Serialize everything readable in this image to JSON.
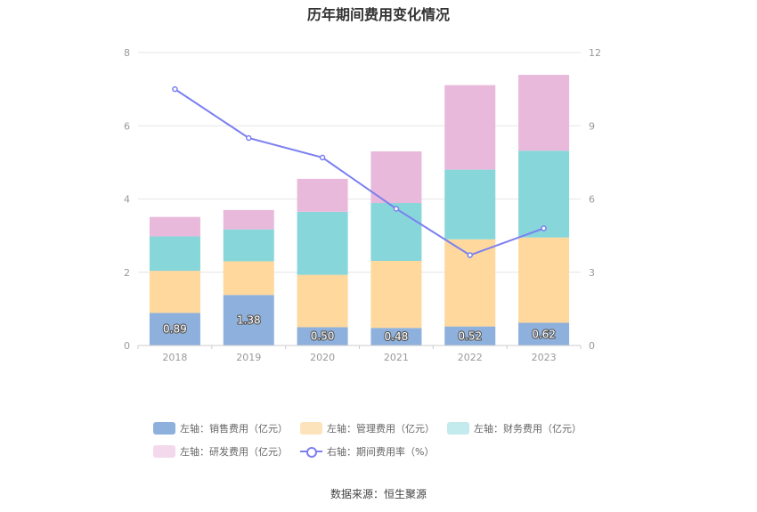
{
  "title": "历年期间费用变化情况",
  "source": "数据来源：恒生聚源",
  "chart_data": {
    "type": "bar",
    "stacked": true,
    "categories": [
      "2018",
      "2019",
      "2020",
      "2021",
      "2022",
      "2023"
    ],
    "left_axis": {
      "ylim": [
        0,
        8
      ],
      "ticks": [
        0,
        2,
        4,
        6,
        8
      ]
    },
    "right_axis": {
      "ylim": [
        0,
        12
      ],
      "ticks": [
        0,
        3,
        6,
        9,
        12
      ]
    },
    "series": [
      {
        "name": "左轴：销售费用（亿元）",
        "axis": "left",
        "color": "#8eb0dd",
        "values": [
          0.89,
          1.38,
          0.5,
          0.48,
          0.52,
          0.62
        ],
        "labels": [
          "0.89",
          "1.38",
          "0.50",
          "0.48",
          "0.52",
          "0.62"
        ]
      },
      {
        "name": "左轴：管理费用（亿元）",
        "axis": "left",
        "color": "#fed89c",
        "values": [
          1.15,
          0.92,
          1.43,
          1.83,
          2.38,
          2.33
        ]
      },
      {
        "name": "左轴：财务费用（亿元）",
        "axis": "left",
        "color": "#86d6da",
        "values": [
          0.94,
          0.87,
          1.72,
          1.58,
          1.9,
          2.37
        ]
      },
      {
        "name": "左轴：研发费用（亿元）",
        "axis": "left",
        "color": "#e8b9da",
        "values": [
          0.53,
          0.53,
          0.9,
          1.41,
          2.31,
          2.07
        ]
      },
      {
        "name": "右轴：期间费用率（%）",
        "axis": "right",
        "type": "line",
        "color": "#7b7ff0",
        "values": [
          10.5,
          8.5,
          7.7,
          5.6,
          3.7,
          4.8
        ]
      }
    ],
    "legend_position": "bottom",
    "grid": true
  }
}
